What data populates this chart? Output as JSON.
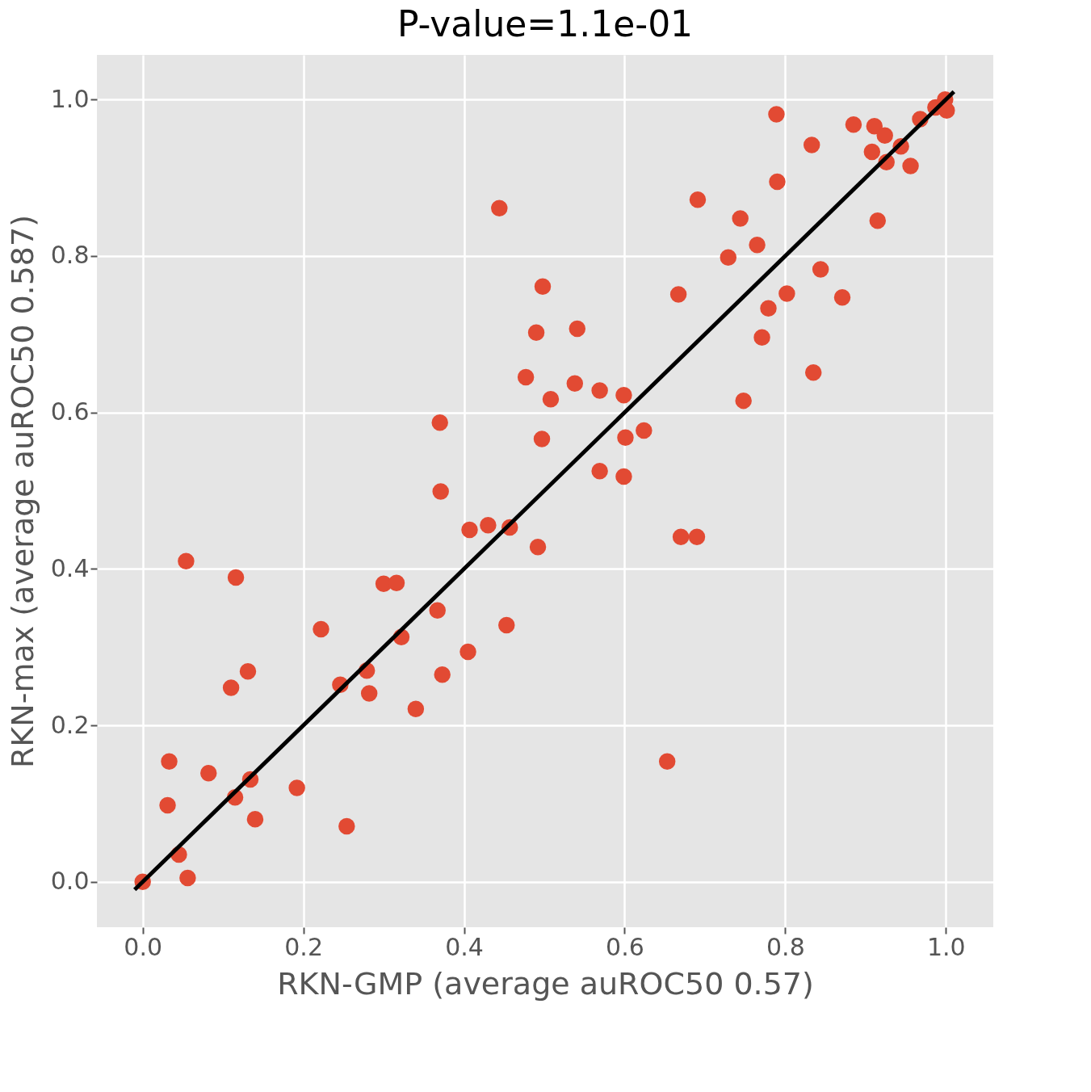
{
  "chart_data": {
    "type": "scatter",
    "title": "P-value=1.1e-01",
    "xlabel": "RKN-GMP (average auROC50 0.57)",
    "ylabel": "RKN-max (average auROC50 0.587)",
    "xlim": [
      -0.057,
      1.059
    ],
    "ylim": [
      -0.058,
      1.057
    ],
    "xticks": [
      {
        "value": 0,
        "label": "0.0"
      },
      {
        "value": 0.2,
        "label": "0.2"
      },
      {
        "value": 0.4,
        "label": "0.4"
      },
      {
        "value": 0.6,
        "label": "0.6"
      },
      {
        "value": 0.8,
        "label": "0.8"
      },
      {
        "value": 1,
        "label": "1.0"
      }
    ],
    "yticks": [
      {
        "value": 0,
        "label": "0.0"
      },
      {
        "value": 0.2,
        "label": "0.2"
      },
      {
        "value": 0.4,
        "label": "0.4"
      },
      {
        "value": 0.6,
        "label": "0.6"
      },
      {
        "value": 0.8,
        "label": "0.8"
      },
      {
        "value": 1,
        "label": "1.0"
      }
    ],
    "grid": true,
    "series": [
      {
        "marker": "circle",
        "color": "#e24a33",
        "x": [
          0,
          0.045,
          0.056,
          0.031,
          0.033,
          0.082,
          0.115,
          0.134,
          0.14,
          0.192,
          0.254,
          0.054,
          0.116,
          0.11,
          0.131,
          0.222,
          0.246,
          0.279,
          0.282,
          0.3,
          0.316,
          0.322,
          0.34,
          0.367,
          0.373,
          0.37,
          0.371,
          0.405,
          0.407,
          0.43,
          0.457,
          0.453,
          0.444,
          0.477,
          0.49,
          0.492,
          0.498,
          0.497,
          0.508,
          0.538,
          0.541,
          0.569,
          0.569,
          0.599,
          0.599,
          0.601,
          0.624,
          0.653,
          0.667,
          0.67,
          0.69,
          0.691,
          0.729,
          0.744,
          0.748,
          0.765,
          0.771,
          0.779,
          0.789,
          0.79,
          0.802,
          0.833,
          0.835,
          0.844,
          0.871,
          0.885,
          0.911,
          0.915,
          0.908,
          0.924,
          0.926,
          0.944,
          0.956,
          0.968,
          0.987,
          0.999,
          1.001
        ],
        "values": [
          0,
          0.035,
          0.005,
          0.098,
          0.154,
          0.139,
          0.108,
          0.131,
          0.08,
          0.12,
          0.071,
          0.41,
          0.389,
          0.248,
          0.269,
          0.323,
          0.252,
          0.27,
          0.241,
          0.381,
          0.382,
          0.313,
          0.221,
          0.347,
          0.265,
          0.587,
          0.499,
          0.294,
          0.45,
          0.456,
          0.453,
          0.328,
          0.861,
          0.645,
          0.702,
          0.428,
          0.761,
          0.566,
          0.617,
          0.637,
          0.707,
          0.628,
          0.525,
          0.622,
          0.518,
          0.568,
          0.577,
          0.154,
          0.751,
          0.441,
          0.441,
          0.872,
          0.798,
          0.848,
          0.615,
          0.814,
          0.696,
          0.733,
          0.981,
          0.895,
          0.752,
          0.942,
          0.651,
          0.783,
          0.747,
          0.968,
          0.966,
          0.845,
          0.933,
          0.954,
          0.92,
          0.94,
          0.915,
          0.975,
          0.99,
          1.0,
          0.986
        ]
      },
      {
        "type": "line",
        "color": "#000000",
        "x": [
          -0.01,
          1.01
        ],
        "values": [
          -0.01,
          1.01
        ]
      }
    ]
  }
}
